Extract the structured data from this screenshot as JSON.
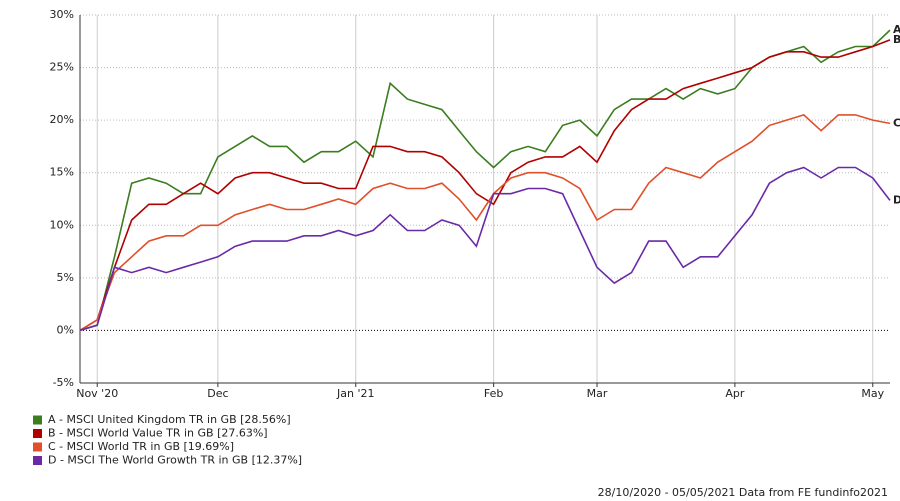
{
  "chart_data": {
    "type": "line",
    "categories": [
      null,
      "Nov '20",
      null,
      null,
      null,
      null,
      null,
      null,
      "Dec",
      null,
      null,
      null,
      null,
      null,
      null,
      null,
      "Jan '21",
      null,
      null,
      null,
      null,
      null,
      null,
      null,
      "Feb",
      null,
      null,
      null,
      null,
      null,
      "Mar",
      null,
      null,
      null,
      null,
      null,
      null,
      null,
      "Apr",
      null,
      null,
      null,
      null,
      null,
      null,
      null,
      "May",
      null
    ],
    "ylim": [
      -5,
      30
    ],
    "yticks": [
      {
        "value": -5,
        "label": "-5%"
      },
      {
        "value": 0,
        "label": "0%"
      },
      {
        "value": 5,
        "label": "5%"
      },
      {
        "value": 10,
        "label": "10%"
      },
      {
        "value": 15,
        "label": "15%"
      },
      {
        "value": 20,
        "label": "20%"
      },
      {
        "value": 25,
        "label": "25%"
      },
      {
        "value": 30,
        "label": "30%"
      }
    ],
    "grid": true,
    "series": [
      {
        "name": "A - MSCI United Kingdom TR in GB [28.56%]",
        "end_label": "A",
        "color": "#3b7d1f",
        "values": [
          0,
          0.5,
          7,
          14,
          14.5,
          14,
          13,
          13,
          16.5,
          17.5,
          18.5,
          17.5,
          17.5,
          16,
          17,
          17,
          18,
          16.5,
          23.5,
          22,
          21.5,
          21,
          19,
          17,
          15.5,
          17,
          17.5,
          17,
          19.5,
          20,
          18.5,
          21,
          22,
          22,
          23,
          22,
          23,
          22.5,
          23,
          25,
          26,
          26.5,
          27,
          25.5,
          26.5,
          27,
          27,
          28.56
        ]
      },
      {
        "name": "B - MSCI World Value TR in GB [27.63%]",
        "end_label": "B",
        "color": "#b00000",
        "values": [
          0,
          1,
          6,
          10.5,
          12,
          12,
          13,
          14,
          13,
          14.5,
          15,
          15,
          14.5,
          14,
          14,
          13.5,
          13.5,
          17.5,
          17.5,
          17,
          17,
          16.5,
          15,
          13,
          12,
          15,
          16,
          16.5,
          16.5,
          17.5,
          16,
          19,
          21,
          22,
          22,
          23,
          23.5,
          24,
          24.5,
          25,
          26,
          26.5,
          26.5,
          26,
          26,
          26.5,
          27,
          27.63
        ]
      },
      {
        "name": "C - MSCI World TR in GB [19.69%]",
        "end_label": "C",
        "color": "#e0502a",
        "values": [
          0,
          1,
          5.5,
          7,
          8.5,
          9,
          9,
          10,
          10,
          11,
          11.5,
          12,
          11.5,
          11.5,
          12,
          12.5,
          12,
          13.5,
          14,
          13.5,
          13.5,
          14,
          12.5,
          10.5,
          13,
          14.5,
          15,
          15,
          14.5,
          13.5,
          10.5,
          11.5,
          11.5,
          14,
          15.5,
          15,
          14.5,
          16,
          17,
          18,
          19.5,
          20,
          20.5,
          19,
          20.5,
          20.5,
          20,
          19.69
        ]
      },
      {
        "name": "D - MSCI The World Growth TR in GB [12.37%]",
        "end_label": "D",
        "color": "#6a2aa8",
        "values": [
          0,
          0.5,
          6,
          5.5,
          6,
          5.5,
          6,
          6.5,
          7,
          8,
          8.5,
          8.5,
          8.5,
          9,
          9,
          9.5,
          9,
          9.5,
          11,
          9.5,
          9.5,
          10.5,
          10,
          8,
          13,
          13,
          13.5,
          13.5,
          13,
          9.5,
          6,
          4.5,
          5.5,
          8.5,
          8.5,
          6,
          7,
          7,
          9,
          11,
          14,
          15,
          15.5,
          14.5,
          15.5,
          15.5,
          14.5,
          12.37
        ]
      }
    ],
    "footer": "28/10/2020 - 05/05/2021 Data from FE fundinfo2021"
  }
}
